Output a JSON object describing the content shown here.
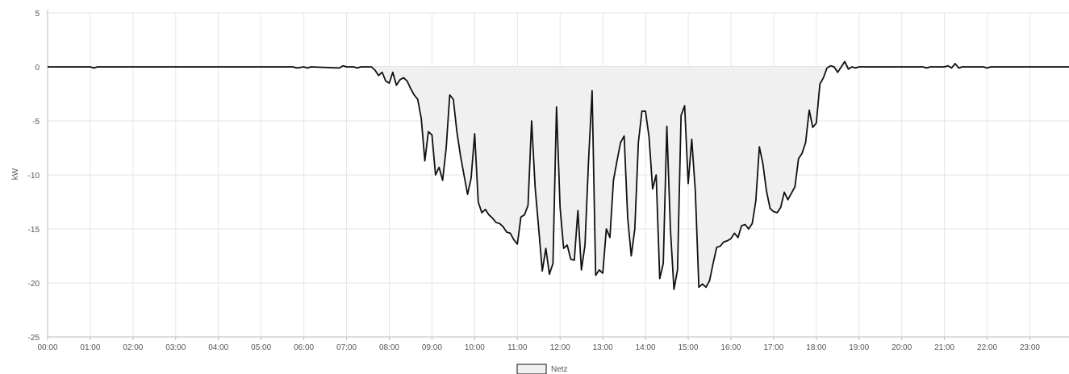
{
  "chart_data": {
    "type": "area",
    "ylabel": "kW",
    "ylim": [
      -25,
      5
    ],
    "yticks": [
      "5",
      "0",
      "-5",
      "-10",
      "-15",
      "-20",
      "-25"
    ],
    "xlim": [
      "00:00",
      "23:55"
    ],
    "xticks": [
      "00:00",
      "01:00",
      "02:00",
      "03:00",
      "04:00",
      "05:00",
      "06:00",
      "07:00",
      "08:00",
      "09:00",
      "10:00",
      "11:00",
      "12:00",
      "13:00",
      "14:00",
      "15:00",
      "16:00",
      "17:00",
      "18:00",
      "19:00",
      "20:00",
      "21:00",
      "22:00",
      "23:00"
    ],
    "grid": true,
    "legend_position": "bottom-center",
    "colors": {
      "line": "#111111",
      "fill": "#f0f0f0",
      "grid": "#e6e6e6",
      "zero_line": "#cccccc"
    },
    "series": [
      {
        "name": "Netz",
        "points": [
          [
            "00:00",
            0
          ],
          [
            "01:00",
            0
          ],
          [
            "01:05",
            -0.1
          ],
          [
            "01:10",
            0
          ],
          [
            "05:45",
            0
          ],
          [
            "05:50",
            -0.1
          ],
          [
            "06:00",
            0
          ],
          [
            "06:05",
            -0.1
          ],
          [
            "06:10",
            0
          ],
          [
            "06:50",
            -0.1
          ],
          [
            "06:55",
            0.1
          ],
          [
            "07:00",
            0
          ],
          [
            "07:10",
            0
          ],
          [
            "07:15",
            -0.1
          ],
          [
            "07:20",
            0
          ],
          [
            "07:35",
            0
          ],
          [
            "07:40",
            -0.3
          ],
          [
            "07:45",
            -0.8
          ],
          [
            "07:50",
            -0.5
          ],
          [
            "07:55",
            -1.3
          ],
          [
            "08:00",
            -1.5
          ],
          [
            "08:05",
            -0.5
          ],
          [
            "08:10",
            -1.7
          ],
          [
            "08:15",
            -1.2
          ],
          [
            "08:20",
            -1
          ],
          [
            "08:25",
            -1.3
          ],
          [
            "08:30",
            -2
          ],
          [
            "08:35",
            -2.6
          ],
          [
            "08:40",
            -3
          ],
          [
            "08:45",
            -4.8
          ],
          [
            "08:50",
            -8.7
          ],
          [
            "08:55",
            -6
          ],
          [
            "09:00",
            -6.3
          ],
          [
            "09:05",
            -10
          ],
          [
            "09:10",
            -9.3
          ],
          [
            "09:15",
            -10.5
          ],
          [
            "09:20",
            -7.5
          ],
          [
            "09:25",
            -2.6
          ],
          [
            "09:30",
            -3
          ],
          [
            "09:35",
            -6
          ],
          [
            "09:40",
            -8.2
          ],
          [
            "09:45",
            -10
          ],
          [
            "09:50",
            -11.8
          ],
          [
            "09:55",
            -10.3
          ],
          [
            "10:00",
            -6.2
          ],
          [
            "10:05",
            -12.5
          ],
          [
            "10:10",
            -13.5
          ],
          [
            "10:15",
            -13.2
          ],
          [
            "10:20",
            -13.7
          ],
          [
            "10:25",
            -14
          ],
          [
            "10:30",
            -14.4
          ],
          [
            "10:35",
            -14.5
          ],
          [
            "10:40",
            -14.8
          ],
          [
            "10:45",
            -15.3
          ],
          [
            "10:50",
            -15.4
          ],
          [
            "10:55",
            -16
          ],
          [
            "11:00",
            -16.4
          ],
          [
            "11:05",
            -13.9
          ],
          [
            "11:10",
            -13.7
          ],
          [
            "11:15",
            -12.8
          ],
          [
            "11:20",
            -5
          ],
          [
            "11:25",
            -11.2
          ],
          [
            "11:30",
            -15
          ],
          [
            "11:35",
            -18.9
          ],
          [
            "11:40",
            -16.8
          ],
          [
            "11:45",
            -19.2
          ],
          [
            "11:50",
            -18.2
          ],
          [
            "11:55",
            -3.7
          ],
          [
            "12:00",
            -13
          ],
          [
            "12:05",
            -16.8
          ],
          [
            "12:10",
            -16.5
          ],
          [
            "12:15",
            -17.8
          ],
          [
            "12:20",
            -17.9
          ],
          [
            "12:25",
            -13.3
          ],
          [
            "12:30",
            -18.8
          ],
          [
            "12:35",
            -16.5
          ],
          [
            "12:40",
            -8.7
          ],
          [
            "12:45",
            -2.2
          ],
          [
            "12:50",
            -19.3
          ],
          [
            "12:55",
            -18.8
          ],
          [
            "13:00",
            -19.1
          ],
          [
            "13:05",
            -15
          ],
          [
            "13:10",
            -15.8
          ],
          [
            "13:15",
            -10.5
          ],
          [
            "13:20",
            -8.7
          ],
          [
            "13:25",
            -7
          ],
          [
            "13:30",
            -6.4
          ],
          [
            "13:35",
            -14
          ],
          [
            "13:40",
            -17.5
          ],
          [
            "13:45",
            -15
          ],
          [
            "13:50",
            -7
          ],
          [
            "13:55",
            -4.1
          ],
          [
            "14:00",
            -4.1
          ],
          [
            "14:05",
            -6.5
          ],
          [
            "14:10",
            -11.3
          ],
          [
            "14:15",
            -10
          ],
          [
            "14:20",
            -19.6
          ],
          [
            "14:25",
            -18.2
          ],
          [
            "14:30",
            -5.5
          ],
          [
            "14:35",
            -15
          ],
          [
            "14:40",
            -20.6
          ],
          [
            "14:45",
            -18.8
          ],
          [
            "14:50",
            -4.5
          ],
          [
            "14:55",
            -3.6
          ],
          [
            "15:00",
            -10.8
          ],
          [
            "15:05",
            -6.7
          ],
          [
            "15:10",
            -11.5
          ],
          [
            "15:15",
            -20.4
          ],
          [
            "15:20",
            -20.1
          ],
          [
            "15:25",
            -20.4
          ],
          [
            "15:30",
            -19.8
          ],
          [
            "15:35",
            -18.2
          ],
          [
            "15:40",
            -16.7
          ],
          [
            "15:45",
            -16.6
          ],
          [
            "15:50",
            -16.2
          ],
          [
            "15:55",
            -16.1
          ],
          [
            "16:00",
            -15.9
          ],
          [
            "16:05",
            -15.4
          ],
          [
            "16:10",
            -15.8
          ],
          [
            "16:15",
            -14.7
          ],
          [
            "16:20",
            -14.6
          ],
          [
            "16:25",
            -15
          ],
          [
            "16:30",
            -14.5
          ],
          [
            "16:35",
            -12.4
          ],
          [
            "16:40",
            -7.4
          ],
          [
            "16:45",
            -9
          ],
          [
            "16:50",
            -11.5
          ],
          [
            "16:55",
            -13.1
          ],
          [
            "17:00",
            -13.4
          ],
          [
            "17:05",
            -13.5
          ],
          [
            "17:10",
            -13
          ],
          [
            "17:15",
            -11.6
          ],
          [
            "17:20",
            -12.3
          ],
          [
            "17:25",
            -11.7
          ],
          [
            "17:30",
            -11.1
          ],
          [
            "17:35",
            -8.5
          ],
          [
            "17:40",
            -8
          ],
          [
            "17:45",
            -7
          ],
          [
            "17:50",
            -4
          ],
          [
            "17:55",
            -5.6
          ],
          [
            "18:00",
            -5.2
          ],
          [
            "18:05",
            -1.6
          ],
          [
            "18:10",
            -1
          ],
          [
            "18:15",
            -0.1
          ],
          [
            "18:20",
            0.1
          ],
          [
            "18:25",
            0
          ],
          [
            "18:30",
            -0.5
          ],
          [
            "18:35",
            0
          ],
          [
            "18:40",
            0.5
          ],
          [
            "18:45",
            -0.2
          ],
          [
            "18:50",
            0
          ],
          [
            "18:55",
            -0.1
          ],
          [
            "19:00",
            0
          ],
          [
            "20:30",
            0
          ],
          [
            "20:35",
            -0.1
          ],
          [
            "20:40",
            0
          ],
          [
            "21:00",
            0
          ],
          [
            "21:05",
            0.1
          ],
          [
            "21:10",
            -0.1
          ],
          [
            "21:15",
            0.3
          ],
          [
            "21:20",
            -0.1
          ],
          [
            "21:25",
            0
          ],
          [
            "21:55",
            0
          ],
          [
            "22:00",
            -0.1
          ],
          [
            "22:05",
            0
          ],
          [
            "23:55",
            0
          ]
        ]
      }
    ]
  }
}
